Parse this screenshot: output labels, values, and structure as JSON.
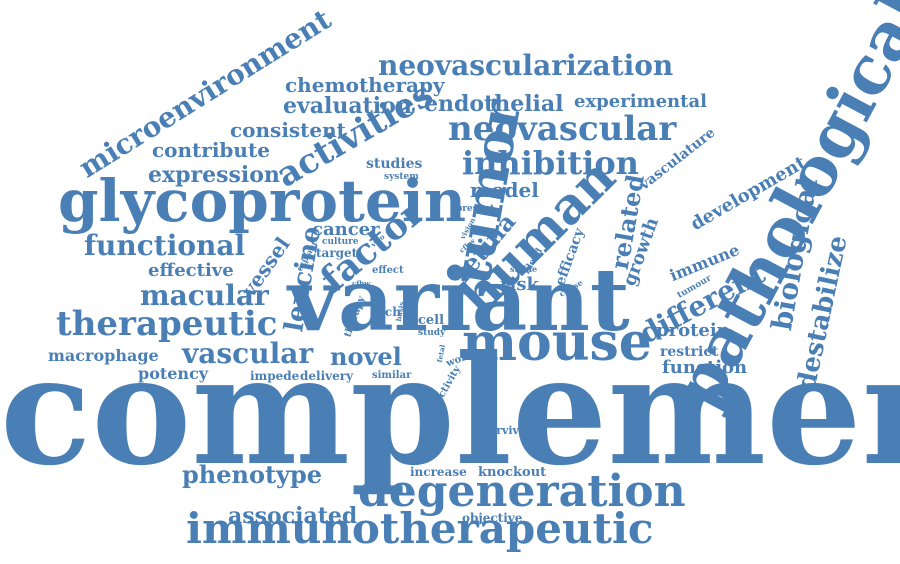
{
  "theme": {
    "word_color": "#4a7fb5",
    "background": "#ffffff"
  },
  "words": [
    {
      "id": "complement",
      "text": "complement"
    },
    {
      "id": "variant",
      "text": "variant"
    },
    {
      "id": "pathological",
      "text": "pathological"
    },
    {
      "id": "mouse",
      "text": "mouse"
    },
    {
      "id": "glycoprotein",
      "text": "glycoprotein"
    },
    {
      "id": "immunotherapeutic",
      "text": "immunotherapeutic"
    },
    {
      "id": "degeneration",
      "text": "degeneration"
    },
    {
      "id": "tumor",
      "text": "tumor"
    },
    {
      "id": "human",
      "text": "human"
    },
    {
      "id": "inhibition",
      "text": "inhibition"
    },
    {
      "id": "neovascular",
      "text": "neovascular"
    },
    {
      "id": "therapeutic",
      "text": "therapeutic"
    },
    {
      "id": "activities",
      "text": "activities"
    },
    {
      "id": "microenvironment",
      "text": "microenvironment"
    },
    {
      "id": "neovascularization",
      "text": "neovascularization"
    },
    {
      "id": "functional",
      "text": "functional"
    },
    {
      "id": "macular",
      "text": "macular"
    },
    {
      "id": "vascular",
      "text": "vascular"
    },
    {
      "id": "factor",
      "text": "factor"
    },
    {
      "id": "biological",
      "text": "biological"
    },
    {
      "id": "different",
      "text": "different"
    },
    {
      "id": "destabilize",
      "text": "destabilize"
    },
    {
      "id": "leucine",
      "text": "leucine"
    },
    {
      "id": "novel",
      "text": "novel"
    },
    {
      "id": "phenotype",
      "text": "phenotype"
    },
    {
      "id": "associated",
      "text": "associated"
    },
    {
      "id": "endothelial",
      "text": "endothelial"
    },
    {
      "id": "chemotherapy",
      "text": "chemotherapy"
    },
    {
      "id": "evaluation",
      "text": "evaluation"
    },
    {
      "id": "consistent",
      "text": "consistent"
    },
    {
      "id": "contribute",
      "text": "contribute"
    },
    {
      "id": "expression",
      "text": "expression"
    },
    {
      "id": "experimental",
      "text": "experimental"
    },
    {
      "id": "retina",
      "text": "retina"
    },
    {
      "id": "related",
      "text": "related"
    },
    {
      "id": "model",
      "text": "model"
    },
    {
      "id": "cancer",
      "text": "cancer"
    },
    {
      "id": "effective",
      "text": "effective"
    },
    {
      "id": "vessel",
      "text": "vessel"
    },
    {
      "id": "growth",
      "text": "growth"
    },
    {
      "id": "development",
      "text": "development"
    },
    {
      "id": "immune",
      "text": "immune"
    },
    {
      "id": "protein",
      "text": "protein"
    },
    {
      "id": "restrict",
      "text": "restrict"
    },
    {
      "id": "function",
      "text": "function"
    },
    {
      "id": "macrophage",
      "text": "macrophage"
    },
    {
      "id": "potency",
      "text": "potency"
    },
    {
      "id": "risk",
      "text": "risk"
    },
    {
      "id": "studies",
      "text": "studies"
    },
    {
      "id": "vasculature",
      "text": "vasculature"
    },
    {
      "id": "efficacy",
      "text": "efficacy"
    },
    {
      "id": "objective",
      "text": "objective"
    },
    {
      "id": "knockout",
      "text": "knockout"
    },
    {
      "id": "increase",
      "text": "increase"
    },
    {
      "id": "survival",
      "text": "survival"
    },
    {
      "id": "impede",
      "text": "impede"
    },
    {
      "id": "delivery",
      "text": "delivery"
    },
    {
      "id": "similar",
      "text": "similar"
    },
    {
      "id": "cell",
      "text": "cell"
    },
    {
      "id": "study",
      "text": "study"
    },
    {
      "id": "rich",
      "text": "rich"
    },
    {
      "id": "role",
      "text": "role"
    },
    {
      "id": "effect",
      "text": "effect"
    },
    {
      "id": "target",
      "text": "target"
    },
    {
      "id": "culture",
      "text": "culture"
    },
    {
      "id": "explant",
      "text": "explant"
    },
    {
      "id": "system",
      "text": "system"
    },
    {
      "id": "present",
      "text": "present"
    },
    {
      "id": "blood",
      "text": "blood"
    },
    {
      "id": "stable",
      "text": "stable"
    },
    {
      "id": "cause",
      "text": "cause"
    },
    {
      "id": "tumour",
      "text": "tumour"
    },
    {
      "id": "therapy",
      "text": "therapy"
    },
    {
      "id": "work",
      "text": "work"
    },
    {
      "id": "activity",
      "text": "activity"
    },
    {
      "id": "vitro",
      "text": "vitro"
    },
    {
      "id": "vision",
      "text": "vision"
    },
    {
      "id": "cfbw",
      "text": "cfbw"
    },
    {
      "id": "cfhr",
      "text": "cfhr"
    },
    {
      "id": "fetal",
      "text": "fetal"
    },
    {
      "id": "cfbw2",
      "text": "cfbw"
    },
    {
      "id": "basis",
      "text": "basis"
    },
    {
      "id": "vivo",
      "text": "vivo"
    }
  ]
}
